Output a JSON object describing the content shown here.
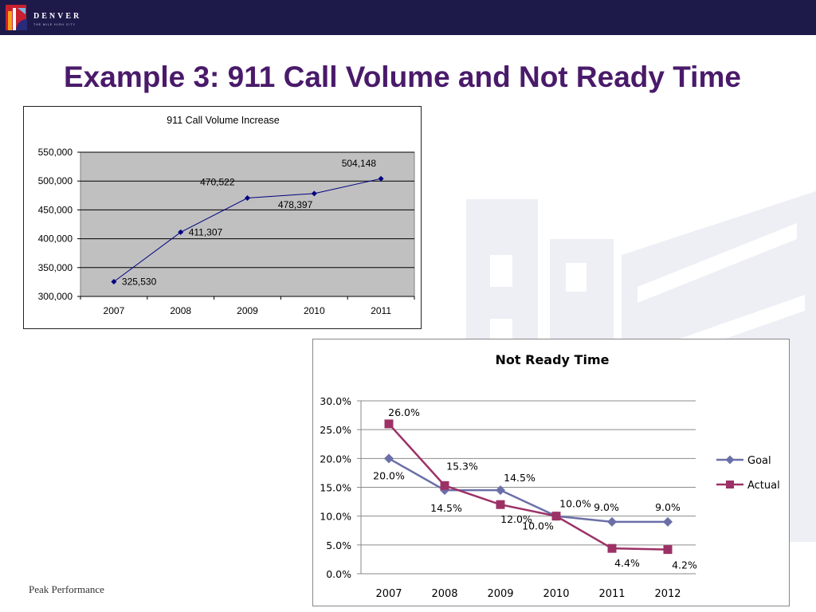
{
  "header": {
    "logo_text": "DENVER",
    "logo_subtext": "THE MILE HIGH CITY"
  },
  "slide": {
    "title": "Example 3:  911 Call Volume and Not Ready Time",
    "footer": "Peak Performance"
  },
  "colors": {
    "topbar": "#1d1a4a",
    "title": "#4a1a6a",
    "chart1_line": "#000080",
    "goal": "#6b6fa8",
    "actual": "#9c3166"
  },
  "chart_data": [
    {
      "type": "line",
      "title": "911 Call Volume Increase",
      "categories": [
        "2007",
        "2008",
        "2009",
        "2010",
        "2011"
      ],
      "values": [
        325530,
        411307,
        470522,
        478397,
        504148
      ],
      "data_labels": [
        "325,530",
        "411,307",
        "470,522",
        "478,397",
        "504,148"
      ],
      "y_ticks": [
        "550,000",
        "500,000",
        "450,000",
        "400,000",
        "350,000",
        "300,000"
      ],
      "ylim": [
        300000,
        550000
      ],
      "grid": true
    },
    {
      "type": "line",
      "title": "Not Ready Time",
      "categories": [
        "2007",
        "2008",
        "2009",
        "2010",
        "2011",
        "2012"
      ],
      "y_ticks": [
        "30.0%",
        "25.0%",
        "20.0%",
        "15.0%",
        "10.0%",
        "5.0%",
        "0.0%"
      ],
      "ylim": [
        0,
        30
      ],
      "grid": true,
      "legend_position": "right",
      "series": [
        {
          "name": "Goal",
          "values": [
            20.0,
            14.5,
            14.5,
            10.0,
            9.0,
            9.0
          ],
          "data_labels": [
            "20.0%",
            "14.5%",
            "14.5%",
            "10.0%",
            "9.0%",
            "9.0%"
          ]
        },
        {
          "name": "Actual",
          "values": [
            26.0,
            15.3,
            12.0,
            10.0,
            4.4,
            4.2
          ],
          "data_labels": [
            "26.0%",
            "15.3%",
            "12.0%",
            "10.0%",
            "4.4%",
            "4.2%"
          ]
        }
      ]
    }
  ]
}
